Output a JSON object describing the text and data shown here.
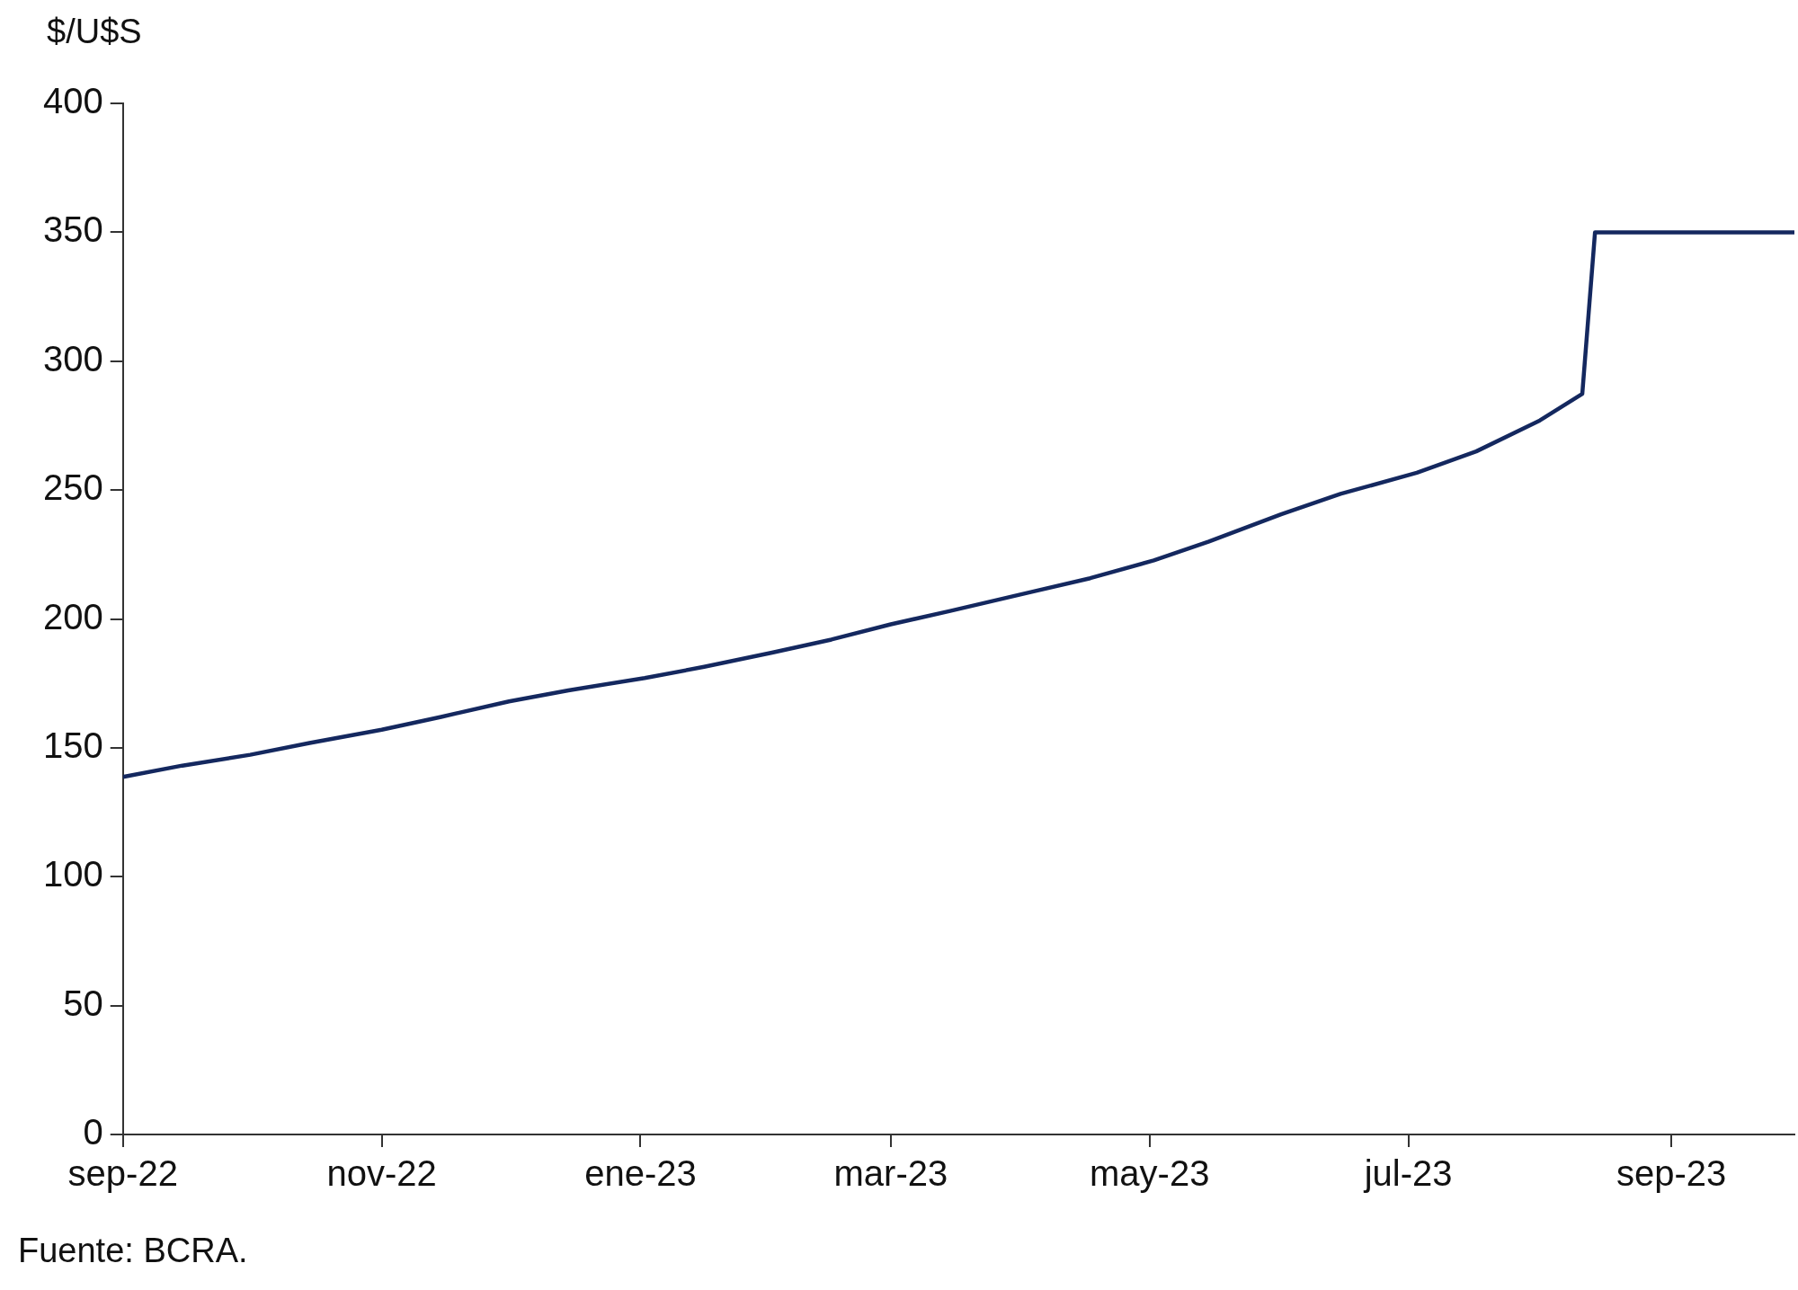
{
  "chart_data": {
    "type": "line",
    "ylabel": "$/U$S",
    "annotations": [
      "Fuente: BCRA."
    ],
    "x": [
      "2022-09-01",
      "2022-09-15",
      "2022-10-01",
      "2022-10-15",
      "2022-11-01",
      "2022-11-15",
      "2022-12-01",
      "2022-12-15",
      "2023-01-02",
      "2023-01-16",
      "2023-02-01",
      "2023-02-15",
      "2023-03-01",
      "2023-03-15",
      "2023-04-03",
      "2023-04-17",
      "2023-05-02",
      "2023-05-15",
      "2023-06-01",
      "2023-06-15",
      "2023-07-03",
      "2023-07-17",
      "2023-08-01",
      "2023-08-11",
      "2023-08-14",
      "2023-09-30"
    ],
    "series": [
      {
        "color": "#14285f",
        "values": [
          138.7,
          143.1,
          147.3,
          151.9,
          157.0,
          162.0,
          168.0,
          172.3,
          177.1,
          181.4,
          186.9,
          192.0,
          197.9,
          203.1,
          210.4,
          215.8,
          222.7,
          230.0,
          240.6,
          248.5,
          256.7,
          265.0,
          277.0,
          287.3,
          350,
          350
        ]
      }
    ],
    "xlim": [
      "2022-09-01",
      "2023-09-30"
    ],
    "xticks": [
      {
        "value": "2022-09-01",
        "label": "sep-22"
      },
      {
        "value": "2022-11-01",
        "label": "nov-22"
      },
      {
        "value": "2023-01-01",
        "label": "ene-23"
      },
      {
        "value": "2023-03-01",
        "label": "mar-23"
      },
      {
        "value": "2023-05-01",
        "label": "may-23"
      },
      {
        "value": "2023-07-01",
        "label": "jul-23"
      },
      {
        "value": "2023-09-01",
        "label": "sep-23"
      }
    ],
    "ylim": [
      0,
      400
    ],
    "yticks": [
      0,
      50,
      100,
      150,
      200,
      250,
      300,
      350,
      400
    ],
    "grid": false,
    "legend": false,
    "marker": "none",
    "line_style": "solid"
  }
}
